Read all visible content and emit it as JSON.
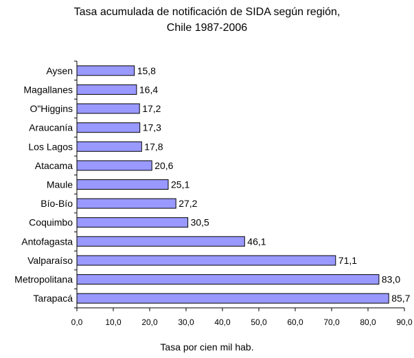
{
  "chart_data": {
    "type": "bar",
    "orientation": "horizontal",
    "title": "Tasa acumulada de notificación de SIDA según región,",
    "subtitle": "Chile 1987-2006",
    "xlabel": "Tasa por cien mil hab.",
    "ylabel": "",
    "xlim": [
      0,
      90
    ],
    "ticks": [
      "0,0",
      "10,0",
      "20,0",
      "30,0",
      "40,0",
      "50,0",
      "60,0",
      "70,0",
      "80,0",
      "90,0"
    ],
    "categories": [
      "Aysen",
      "Magallanes",
      "O\"Higgins",
      "Araucanía",
      "Los Lagos",
      "Atacama",
      "Maule",
      "Bío-Bío",
      "Coquimbo",
      "Antofagasta",
      "Valparaíso",
      "Metropolitana",
      "Tarapacá"
    ],
    "values": [
      15.8,
      16.4,
      17.2,
      17.3,
      17.8,
      20.6,
      25.1,
      27.2,
      30.5,
      46.1,
      71.1,
      83.0,
      85.7
    ],
    "value_labels": [
      "15,8",
      "16,4",
      "17,2",
      "17,3",
      "17,8",
      "20,6",
      "25,1",
      "27,2",
      "30,5",
      "46,1",
      "71,1",
      "83,0",
      "85,7"
    ],
    "bar_color": "#9999FF",
    "bar_stroke": "#000000",
    "grid": false,
    "legend": "none"
  }
}
